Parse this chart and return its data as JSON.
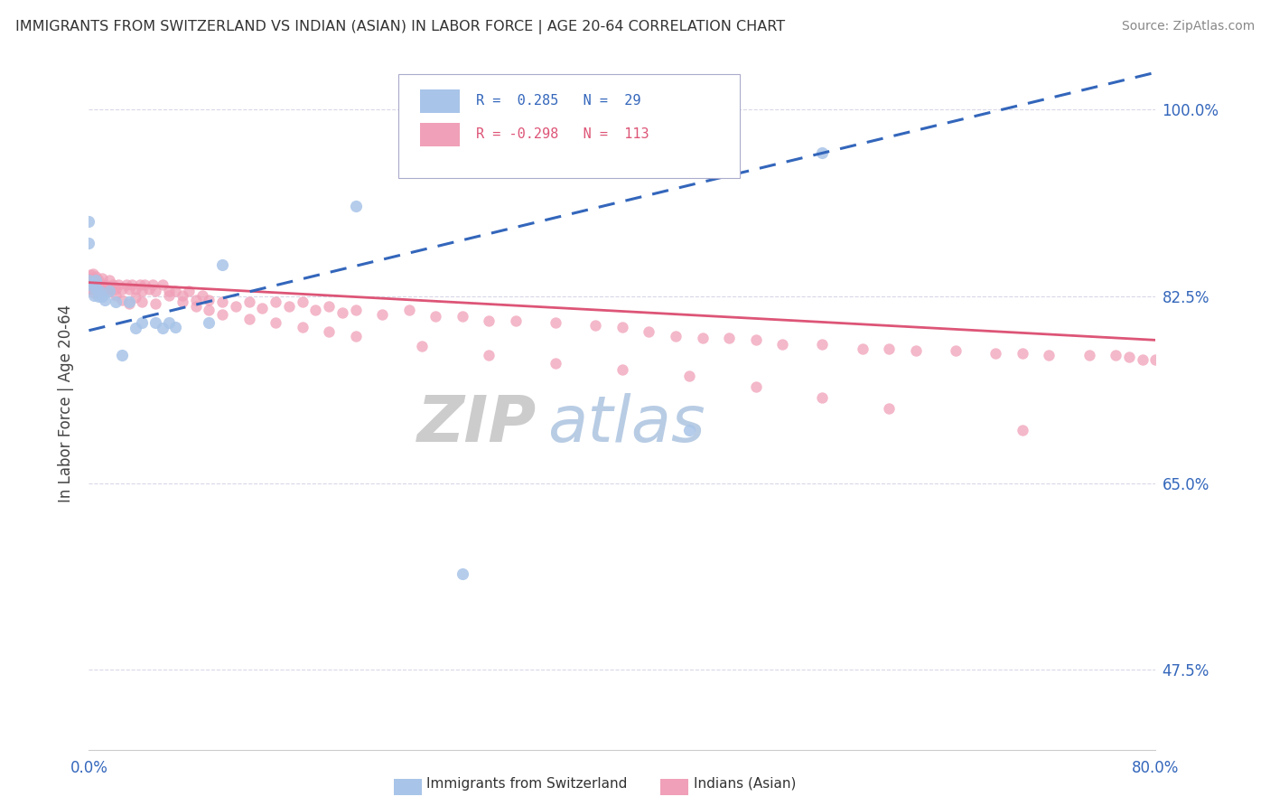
{
  "title": "IMMIGRANTS FROM SWITZERLAND VS INDIAN (ASIAN) IN LABOR FORCE | AGE 20-64 CORRELATION CHART",
  "source": "Source: ZipAtlas.com",
  "ylabel": "In Labor Force | Age 20-64",
  "blue_label": "Immigrants from Switzerland",
  "pink_label": "Indians (Asian)",
  "blue_R": "0.285",
  "blue_N": "29",
  "pink_R": "-0.298",
  "pink_N": "113",
  "blue_color": "#a8c4e8",
  "pink_color": "#f0a0b8",
  "blue_line_color": "#3366bb",
  "pink_line_color": "#dd5577",
  "watermark_zip": "ZIP",
  "watermark_atlas": "atlas",
  "background_color": "#ffffff",
  "grid_color": "#d8d8e8",
  "x_min": 0.0,
  "x_max": 0.8,
  "y_min": 0.4,
  "y_max": 1.05,
  "blue_x": [
    0.0,
    0.0,
    0.0,
    0.002,
    0.003,
    0.004,
    0.005,
    0.006,
    0.007,
    0.008,
    0.009,
    0.01,
    0.012,
    0.015,
    0.02,
    0.025,
    0.03,
    0.035,
    0.04,
    0.05,
    0.055,
    0.06,
    0.065,
    0.09,
    0.1,
    0.2,
    0.28,
    0.45,
    0.55
  ],
  "blue_y": [
    0.84,
    0.895,
    0.875,
    0.835,
    0.837,
    0.826,
    0.84,
    0.832,
    0.825,
    0.83,
    0.826,
    0.825,
    0.822,
    0.83,
    0.82,
    0.77,
    0.82,
    0.795,
    0.8,
    0.8,
    0.795,
    0.8,
    0.796,
    0.8,
    0.855,
    0.91,
    0.565,
    0.7,
    0.96
  ],
  "pink_x": [
    0.0,
    0.0,
    0.0,
    0.001,
    0.001,
    0.002,
    0.002,
    0.003,
    0.003,
    0.004,
    0.004,
    0.005,
    0.005,
    0.006,
    0.007,
    0.007,
    0.008,
    0.009,
    0.01,
    0.01,
    0.012,
    0.013,
    0.015,
    0.016,
    0.018,
    0.02,
    0.022,
    0.025,
    0.028,
    0.03,
    0.032,
    0.035,
    0.038,
    0.04,
    0.042,
    0.045,
    0.048,
    0.05,
    0.055,
    0.06,
    0.065,
    0.07,
    0.075,
    0.08,
    0.085,
    0.09,
    0.1,
    0.11,
    0.12,
    0.13,
    0.14,
    0.15,
    0.16,
    0.17,
    0.18,
    0.19,
    0.2,
    0.22,
    0.24,
    0.26,
    0.28,
    0.3,
    0.32,
    0.35,
    0.38,
    0.4,
    0.42,
    0.44,
    0.46,
    0.48,
    0.5,
    0.52,
    0.55,
    0.58,
    0.6,
    0.62,
    0.65,
    0.68,
    0.7,
    0.72,
    0.75,
    0.77,
    0.78,
    0.79,
    0.8,
    0.005,
    0.008,
    0.01,
    0.015,
    0.02,
    0.025,
    0.03,
    0.035,
    0.04,
    0.05,
    0.06,
    0.07,
    0.08,
    0.09,
    0.1,
    0.12,
    0.14,
    0.16,
    0.18,
    0.2,
    0.25,
    0.3,
    0.35,
    0.4,
    0.45,
    0.5,
    0.55,
    0.6,
    0.7
  ],
  "pink_y": [
    0.84,
    0.836,
    0.832,
    0.845,
    0.836,
    0.842,
    0.832,
    0.846,
    0.834,
    0.842,
    0.828,
    0.844,
    0.832,
    0.84,
    0.84,
    0.832,
    0.836,
    0.832,
    0.842,
    0.83,
    0.836,
    0.832,
    0.84,
    0.832,
    0.836,
    0.832,
    0.836,
    0.832,
    0.836,
    0.832,
    0.836,
    0.832,
    0.836,
    0.83,
    0.836,
    0.832,
    0.836,
    0.83,
    0.836,
    0.83,
    0.83,
    0.826,
    0.83,
    0.822,
    0.826,
    0.822,
    0.82,
    0.816,
    0.82,
    0.814,
    0.82,
    0.816,
    0.82,
    0.812,
    0.816,
    0.81,
    0.812,
    0.808,
    0.812,
    0.806,
    0.806,
    0.802,
    0.802,
    0.8,
    0.798,
    0.796,
    0.792,
    0.788,
    0.786,
    0.786,
    0.784,
    0.78,
    0.78,
    0.776,
    0.776,
    0.774,
    0.774,
    0.772,
    0.772,
    0.77,
    0.77,
    0.77,
    0.768,
    0.766,
    0.766,
    0.836,
    0.834,
    0.832,
    0.83,
    0.826,
    0.822,
    0.818,
    0.824,
    0.82,
    0.818,
    0.826,
    0.82,
    0.816,
    0.812,
    0.808,
    0.804,
    0.8,
    0.796,
    0.792,
    0.788,
    0.778,
    0.77,
    0.762,
    0.756,
    0.75,
    0.74,
    0.73,
    0.72,
    0.7
  ]
}
